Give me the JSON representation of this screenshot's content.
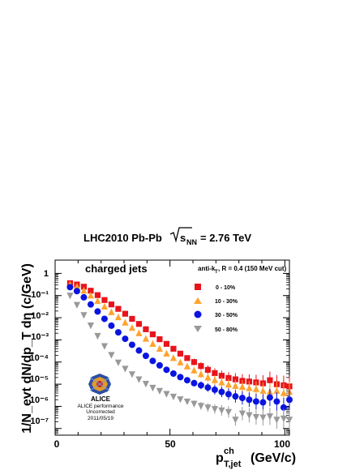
{
  "chart_data": {
    "type": "scatter",
    "title_prefix": "LHC2010 Pb-Pb",
    "title_energy": "= 2.76 TeV",
    "title_sqrt_sub": "NN",
    "xlabel_main": "p",
    "xlabel_sup": "ch",
    "xlabel_sub": "T,jet",
    "xlabel_unit": "(GeV/c)",
    "ylabel": "1/N_evt dN/dp_T dη (c/GeV)",
    "xlim": [
      0,
      102
    ],
    "ylim_log10": [
      -7.3,
      0.6
    ],
    "log_y": true,
    "x_ticks": [
      "0",
      "50",
      "100"
    ],
    "y_ticks": [
      "1",
      "10⁻¹",
      "10⁻²",
      "10⁻³",
      "10⁻⁴",
      "10⁻⁵",
      "10⁻⁶",
      "10⁻⁷"
    ],
    "annotation_main": "charged jets",
    "annotation_algo": "anti-k",
    "annotation_algo_sub": "T",
    "annotation_algo_rest": ", R = 0.4 (150 MeV cut)",
    "logo_text": "ALICE",
    "logo_caption": [
      "ALICE performance",
      "Uncorrected",
      "2011/05/19"
    ],
    "legend_position": "top-right",
    "series": [
      {
        "name": "0 - 10%",
        "marker": "square",
        "color": "#e8141c",
        "x": [
          6.5,
          9.5,
          12.5,
          15.5,
          18.5,
          21.5,
          24.5,
          27.5,
          30.5,
          33.5,
          36.5,
          39.5,
          42.5,
          45.5,
          48.5,
          51.5,
          54.5,
          57.5,
          60.5,
          63.5,
          66.5,
          69.5,
          72.5,
          75.5,
          78.5,
          81.5,
          84.5,
          87.5,
          90.5,
          93.5,
          96.5,
          99.5,
          102
        ],
        "log10_y": [
          -0.44,
          -0.5,
          -0.6,
          -0.78,
          -0.98,
          -1.2,
          -1.4,
          -1.6,
          -1.82,
          -2.05,
          -2.28,
          -2.52,
          -2.75,
          -2.97,
          -3.18,
          -3.4,
          -3.62,
          -3.82,
          -4.0,
          -4.18,
          -4.35,
          -4.5,
          -4.62,
          -4.72,
          -4.78,
          -4.85,
          -4.88,
          -4.92,
          -4.96,
          -4.82,
          -5.0,
          -5.05,
          -5.1
        ]
      },
      {
        "name": "10 - 30%",
        "marker": "triangle",
        "color": "#ffa32f",
        "x": [
          6.5,
          9.5,
          12.5,
          15.5,
          18.5,
          21.5,
          24.5,
          27.5,
          30.5,
          33.5,
          36.5,
          39.5,
          42.5,
          45.5,
          48.5,
          51.5,
          54.5,
          57.5,
          60.5,
          63.5,
          66.5,
          69.5,
          72.5,
          75.5,
          78.5,
          81.5,
          84.5,
          87.5,
          90.5,
          93.5,
          96.5,
          99.5,
          102
        ],
        "log10_y": [
          -0.5,
          -0.6,
          -0.78,
          -1.0,
          -1.25,
          -1.5,
          -1.75,
          -1.98,
          -2.22,
          -2.46,
          -2.7,
          -2.95,
          -3.18,
          -3.4,
          -3.62,
          -3.82,
          -4.02,
          -4.2,
          -4.38,
          -4.55,
          -4.7,
          -4.82,
          -4.92,
          -5.02,
          -5.08,
          -5.12,
          -5.18,
          -5.22,
          -5.3,
          -5.35,
          -5.3,
          -5.4,
          -5.35
        ]
      },
      {
        "name": "30 - 50%",
        "marker": "circle",
        "color": "#0a14e0",
        "x": [
          6.5,
          9.5,
          12.5,
          15.5,
          18.5,
          21.5,
          24.5,
          27.5,
          30.5,
          33.5,
          36.5,
          39.5,
          42.5,
          45.5,
          48.5,
          51.5,
          54.5,
          57.5,
          60.5,
          63.5,
          66.5,
          69.5,
          72.5,
          75.5,
          78.5,
          81.5,
          84.5,
          87.5,
          90.5,
          93.5,
          96.5,
          99.5,
          102
        ],
        "log10_y": [
          -0.62,
          -0.8,
          -1.08,
          -1.4,
          -1.72,
          -2.05,
          -2.36,
          -2.66,
          -2.95,
          -3.22,
          -3.48,
          -3.72,
          -3.95,
          -4.15,
          -4.35,
          -4.52,
          -4.68,
          -4.82,
          -4.95,
          -5.05,
          -5.15,
          -5.25,
          -5.35,
          -5.45,
          -5.55,
          -5.62,
          -5.7,
          -5.78,
          -5.82,
          -5.6,
          -5.78,
          -6.05,
          -5.7
        ]
      },
      {
        "name": "50 - 80%",
        "marker": "triangle-down",
        "color": "#999999",
        "x": [
          6.5,
          9.5,
          12.5,
          15.5,
          18.5,
          21.5,
          24.5,
          27.5,
          30.5,
          33.5,
          36.5,
          39.5,
          42.5,
          45.5,
          48.5,
          51.5,
          54.5,
          57.5,
          60.5,
          63.5,
          66.5,
          69.5,
          72.5,
          75.5,
          78.5,
          81.5,
          84.5,
          87.5,
          90.5,
          93.5,
          96.5,
          99.5,
          102
        ],
        "log10_y": [
          -1.0,
          -1.42,
          -1.88,
          -2.35,
          -2.82,
          -3.28,
          -3.68,
          -4.02,
          -4.3,
          -4.55,
          -4.78,
          -4.98,
          -5.16,
          -5.3,
          -5.44,
          -5.56,
          -5.68,
          -5.78,
          -5.88,
          -5.98,
          -6.05,
          -6.12,
          -6.18,
          -6.25,
          -6.6,
          -6.32,
          -6.4,
          -6.48,
          -6.5,
          -6.45,
          -6.6,
          -6.55,
          -6.6
        ]
      }
    ]
  }
}
